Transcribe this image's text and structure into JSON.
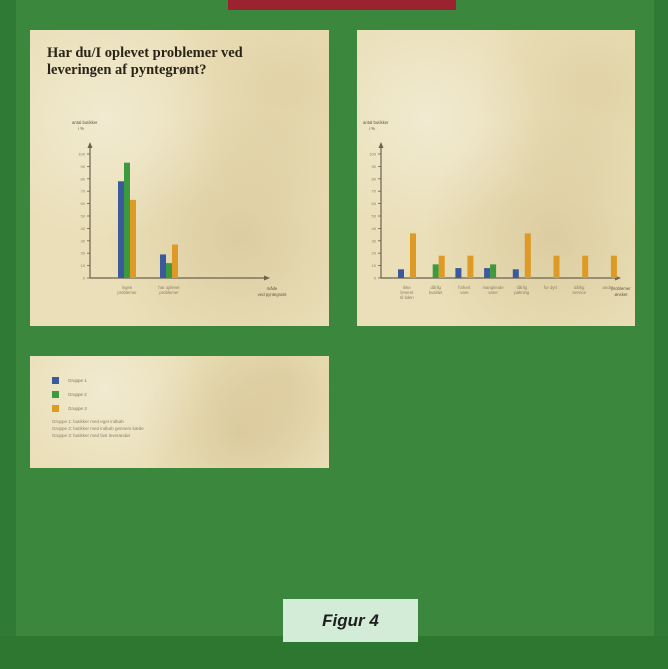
{
  "chart_data": [
    {
      "type": "bar",
      "title": "Har du/I oplevet problemer ved leveringen af pyntegrønt?",
      "ylabel": "antal butikker i %",
      "xlabel": "måde, ved pyntegrønt",
      "categories": [
        "ingen problemer",
        "har oplevet problemer"
      ],
      "series": [
        {
          "name": "Gruppe 1",
          "values": [
            78,
            19
          ]
        },
        {
          "name": "Gruppe 2",
          "values": [
            93,
            12
          ]
        },
        {
          "name": "Gruppe 3",
          "values": [
            63,
            27
          ]
        }
      ],
      "ylim": [
        0,
        100
      ],
      "yticks": [
        0,
        10,
        20,
        30,
        40,
        50,
        60,
        70,
        80,
        90,
        100
      ],
      "grid": false,
      "legend": "separate-panel"
    },
    {
      "type": "bar",
      "title": "",
      "ylabel": "antal butikker i %",
      "xlabel": "problemer, ønsket",
      "categories": [
        "ikke leveret til tiden",
        "dårlig kvalitet",
        "forkert vare",
        "manglende varer",
        "dårlig pakning",
        "for dyrt",
        "dårlig service",
        "andet"
      ],
      "series": [
        {
          "name": "Gruppe 1",
          "values": [
            7,
            0,
            8,
            8,
            7,
            0,
            0,
            0
          ]
        },
        {
          "name": "Gruppe 2",
          "values": [
            0,
            11,
            0,
            11,
            0,
            0,
            0,
            0
          ]
        },
        {
          "name": "Gruppe 3",
          "values": [
            36,
            18,
            18,
            0,
            36,
            18,
            18,
            18
          ]
        }
      ],
      "ylim": [
        0,
        100
      ],
      "yticks": [
        0,
        10,
        20,
        30,
        40,
        50,
        60,
        70,
        80,
        90,
        100
      ],
      "grid": false,
      "legend": "separate-panel"
    }
  ],
  "legend": {
    "items": [
      {
        "label": "Gruppe 1",
        "color": "#3a5a9c"
      },
      {
        "label": "Gruppe 2",
        "color": "#3e9a3e"
      },
      {
        "label": "Gruppe 3",
        "color": "#dd9a24"
      }
    ],
    "notes": [
      "Gruppe 1: butikker med eget indkøb",
      "Gruppe 2: butikker med indkøb gennem kæde",
      "Gruppe 3: butikker med fast leverandør"
    ]
  },
  "caption": "Figur 4"
}
